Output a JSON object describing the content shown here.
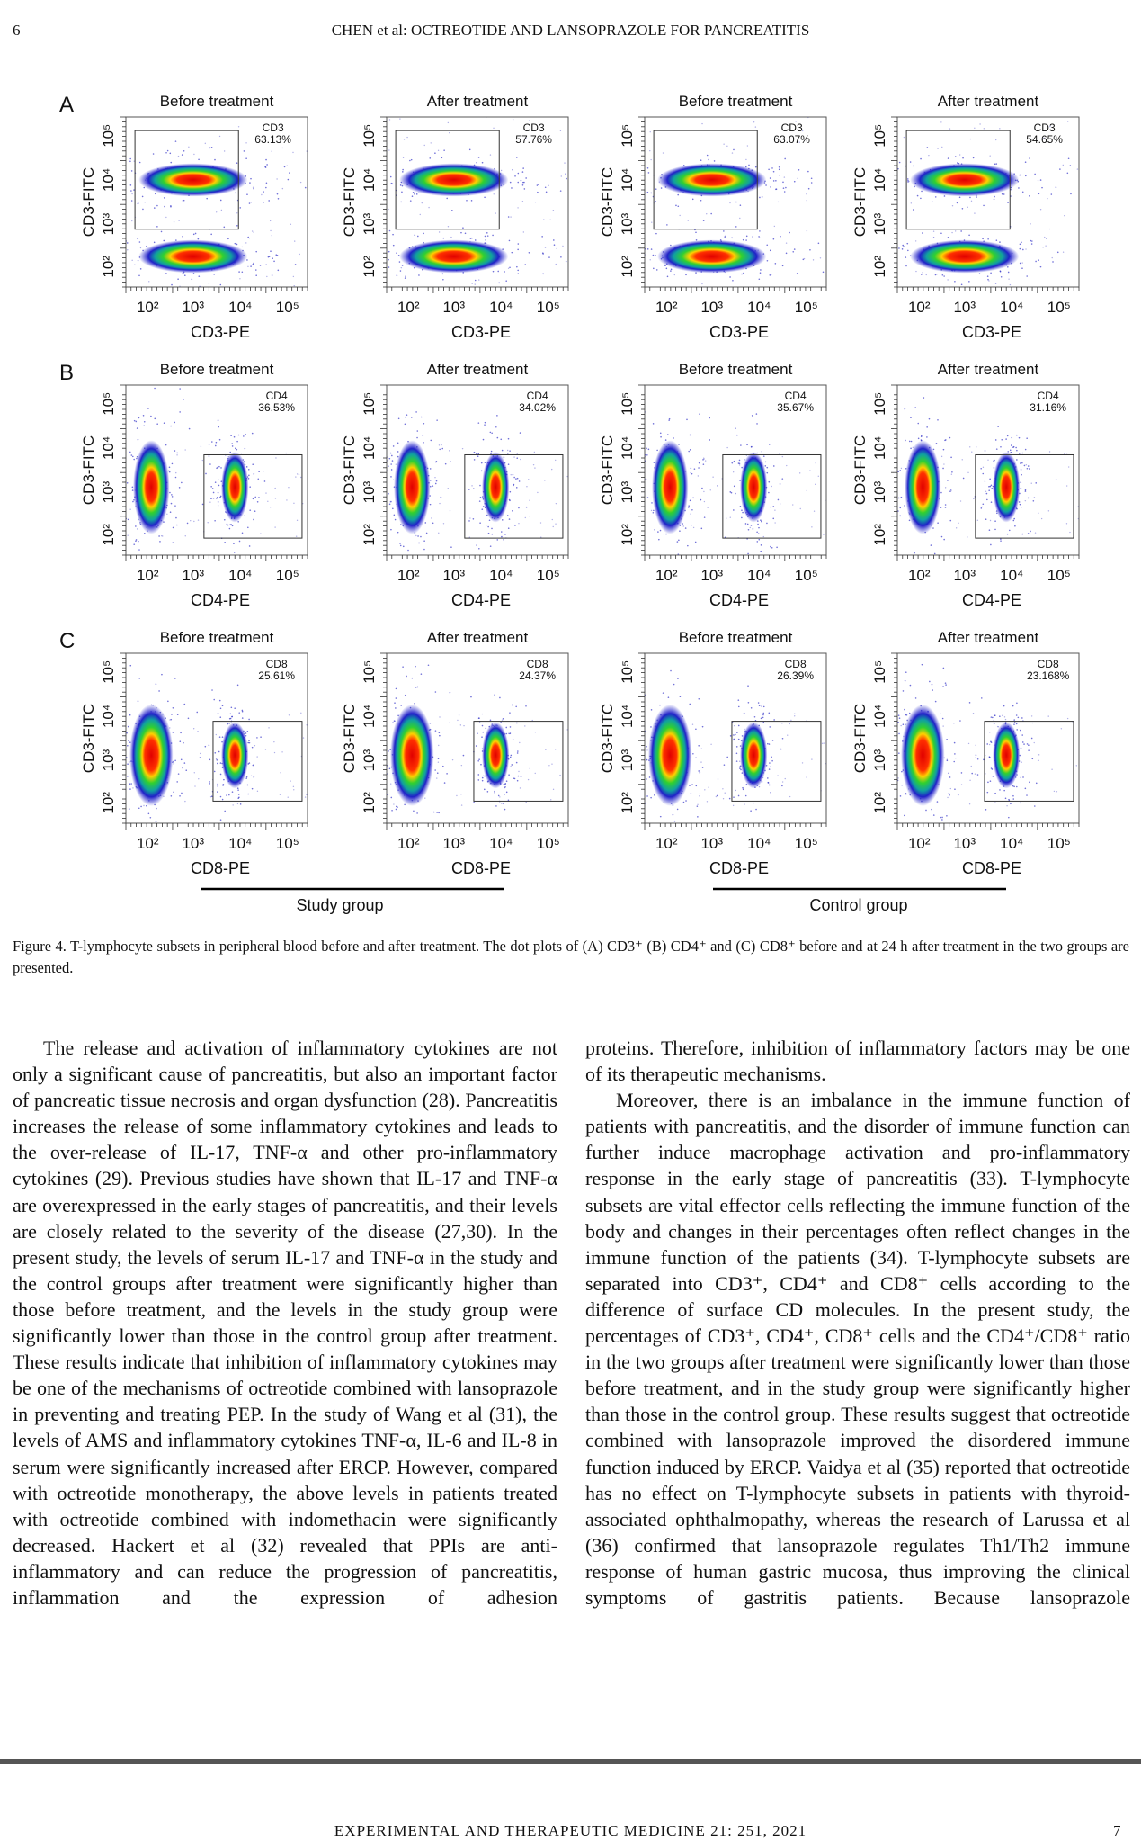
{
  "header": {
    "page_number": "6",
    "running_title": "CHEN et al: OCTREOTIDE AND LANSOPRAZOLE FOR PANCREATITIS"
  },
  "figure": {
    "ticks": [
      "10²",
      "10³",
      "10⁴",
      "10⁵"
    ],
    "panels": [
      {
        "label": "A",
        "plots": [
          {
            "title": "Before treatment",
            "gate_label": "CD3",
            "gate_value": "63.13%",
            "x_label": "CD3-PE",
            "y_label": "CD3-FITC"
          },
          {
            "title": "After treatment",
            "gate_label": "CD3",
            "gate_value": "57.76%",
            "x_label": "CD3-PE",
            "y_label": "CD3-FITC"
          },
          {
            "title": "Before treatment",
            "gate_label": "CD3",
            "gate_value": "63.07%",
            "x_label": "CD3-PE",
            "y_label": "CD3-FITC"
          },
          {
            "title": "After treatment",
            "gate_label": "CD3",
            "gate_value": "54.65%",
            "x_label": "CD3-PE",
            "y_label": "CD3-FITC"
          }
        ]
      },
      {
        "label": "B",
        "plots": [
          {
            "title": "Before treatment",
            "gate_label": "CD4",
            "gate_value": "36.53%",
            "x_label": "CD4-PE",
            "y_label": "CD3-FITC"
          },
          {
            "title": "After treatment",
            "gate_label": "CD4",
            "gate_value": "34.02%",
            "x_label": "CD4-PE",
            "y_label": "CD3-FITC"
          },
          {
            "title": "Before treatment",
            "gate_label": "CD4",
            "gate_value": "35.67%",
            "x_label": "CD4-PE",
            "y_label": "CD3-FITC"
          },
          {
            "title": "After treatment",
            "gate_label": "CD4",
            "gate_value": "31.16%",
            "x_label": "CD4-PE",
            "y_label": "CD3-FITC"
          }
        ]
      },
      {
        "label": "C",
        "plots": [
          {
            "title": "Before treatment",
            "gate_label": "CD8",
            "gate_value": "25.61%",
            "x_label": "CD8-PE",
            "y_label": "CD3-FITC"
          },
          {
            "title": "After treatment",
            "gate_label": "CD8",
            "gate_value": "24.37%",
            "x_label": "CD8-PE",
            "y_label": "CD3-FITC"
          },
          {
            "title": "Before treatment",
            "gate_label": "CD8",
            "gate_value": "26.39%",
            "x_label": "CD8-PE",
            "y_label": "CD3-FITC"
          },
          {
            "title": "After treatment",
            "gate_label": "CD8",
            "gate_value": "23.168%",
            "x_label": "CD8-PE",
            "y_label": "CD3-FITC"
          }
        ]
      }
    ],
    "groups": [
      "Study group",
      "Control group"
    ],
    "caption": "Figure 4. T-lymphocyte subsets in peripheral blood before and after treatment. The dot plots of (A) CD3⁺ (B) CD4⁺ and (C) CD8⁺ before and at 24 h after treatment in the two groups are presented."
  },
  "body": {
    "left_column": [
      "The release and activation of inflammatory cytokines are not only a significant cause of pancreatitis, but also an important factor of pancreatic tissue necrosis and organ dysfunction (28). Pancreatitis increases the release of some inflammatory cytokines and leads to the over-release of IL-17, TNF-α and other pro-inflammatory cytokines (29). Previous studies have shown that IL-17 and TNF-α are overexpressed in the early stages of pancreatitis, and their levels are closely related to the severity of the disease (27,30). In the present study, the levels of serum IL-17 and TNF-α in the study and the control groups after treatment were significantly higher than those before treatment, and the levels in the study group were significantly lower than those in the control group after treatment. These results indicate that inhibition of inflammatory cytokines may be one of the mechanisms of octreotide combined with lansoprazole in preventing and treating PEP. In the study of Wang et al (31), the levels of AMS and inflammatory cytokines TNF-α, IL-6 and IL-8 in serum were significantly increased after ERCP. However, compared with octreotide monotherapy, the above levels in patients treated with octreotide combined with indomethacin were significantly decreased. Hackert et al (32) revealed that PPIs are anti-inflammatory and can reduce the progression of pancreatitis, inflammation and the expression of adhesion"
    ],
    "right_column": [
      "proteins. Therefore, inhibition of inflammatory factors may be one of its therapeutic mechanisms.",
      "Moreover, there is an imbalance in the immune function of patients with pancreatitis, and the disorder of immune function can further induce macrophage activation and pro-inflammatory response in the early stage of pancreatitis (33). T-lymphocyte subsets are vital effector cells reflecting the immune function of the body and changes in their percentages often reflect changes in the immune function of the patients (34). T-lymphocyte subsets are separated into CD3⁺, CD4⁺ and CD8⁺ cells according to the difference of surface CD molecules. In the present study, the percentages of CD3⁺, CD4⁺, CD8⁺ cells and the CD4⁺/CD8⁺ ratio in the two groups after treatment were significantly lower than those before treatment, and in the study group were significantly higher than those in the control group. These results suggest that octreotide combined with lansoprazole improved the disordered immune function induced by ERCP. Vaidya et al (35) reported that octreotide has no effect on T-lymphocyte subsets in patients with thyroid-associated ophthalmopathy, whereas the research of Larussa et al (36) confirmed that lansoprazole regulates Th1/Th2 immune response of human gastric mucosa, thus improving the clinical symptoms of gastritis patients. Because lansoprazole"
    ]
  },
  "footer": {
    "journal": "EXPERIMENTAL AND THERAPEUTIC MEDICINE 21: 251, 2021",
    "page_number": "7"
  }
}
